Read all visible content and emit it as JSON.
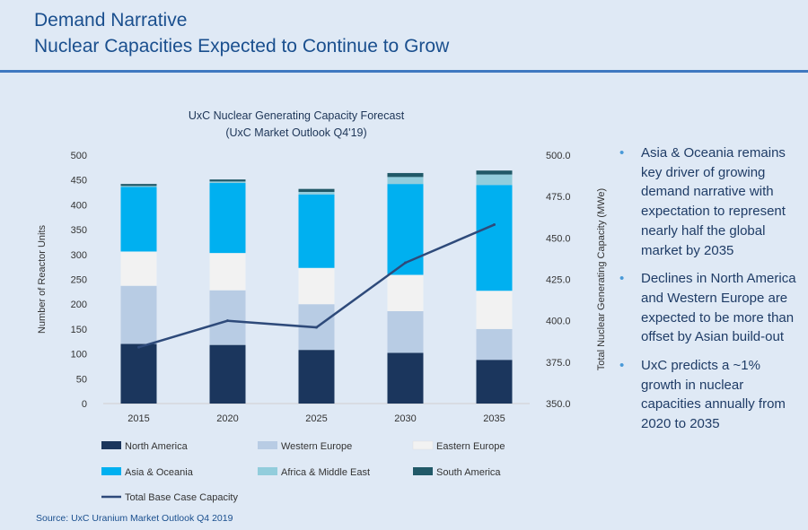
{
  "header": {
    "line1": "Demand Narrative",
    "line2": "Nuclear Capacities Expected to Continue to Grow"
  },
  "chart_data": {
    "type": "bar",
    "stacked": true,
    "title": "UxC Nuclear Generating Capacity Forecast",
    "subtitle": "(UxC Market Outlook Q4'19)",
    "categories": [
      "2015",
      "2020",
      "2025",
      "2030",
      "2035"
    ],
    "ylabel": "Number of Reactor Units",
    "ylim": [
      0,
      500
    ],
    "yticks": [
      0,
      50,
      100,
      150,
      200,
      250,
      300,
      350,
      400,
      450,
      500
    ],
    "y2label": "Total Nuclear Generating Capacity (MWe)",
    "y2lim": [
      350,
      500
    ],
    "y2ticks": [
      "350.0",
      "375.0",
      "400.0",
      "425.0",
      "450.0",
      "475.0",
      "500.0"
    ],
    "series": [
      {
        "name": "North America",
        "color": "#1b365d",
        "values": [
          120,
          118,
          108,
          102,
          88
        ]
      },
      {
        "name": "Western Europe",
        "color": "#b8cce4",
        "values": [
          117,
          110,
          92,
          84,
          62
        ]
      },
      {
        "name": "Eastern Europe",
        "color": "#f2f2f2",
        "values": [
          69,
          75,
          73,
          73,
          77
        ]
      },
      {
        "name": "Asia & Oceania",
        "color": "#00b0f0",
        "values": [
          130,
          141,
          148,
          183,
          213
        ]
      },
      {
        "name": "Africa & Middle East",
        "color": "#92cddc",
        "values": [
          2,
          3,
          5,
          14,
          21
        ]
      },
      {
        "name": "South America",
        "color": "#215968",
        "values": [
          4,
          4,
          6,
          8,
          8
        ]
      }
    ],
    "line_series": {
      "name": "Total Base Case  Capacity",
      "color": "#2e4a7a",
      "axis": "secondary",
      "values": [
        384,
        400,
        396,
        435,
        458
      ]
    },
    "legend_position": "bottom",
    "grid": false
  },
  "bullets": [
    "Asia & Oceania remains key driver of growing demand narrative with expectation to represent nearly half the global market by 2035",
    "Declines in North America and Western Europe are expected to be more than offset by Asian build-out",
    "UxC predicts a ~1% growth in nuclear capacities annually from 2020 to 2035"
  ],
  "source": "Source: UxC Uranium Market Outlook Q4 2019"
}
